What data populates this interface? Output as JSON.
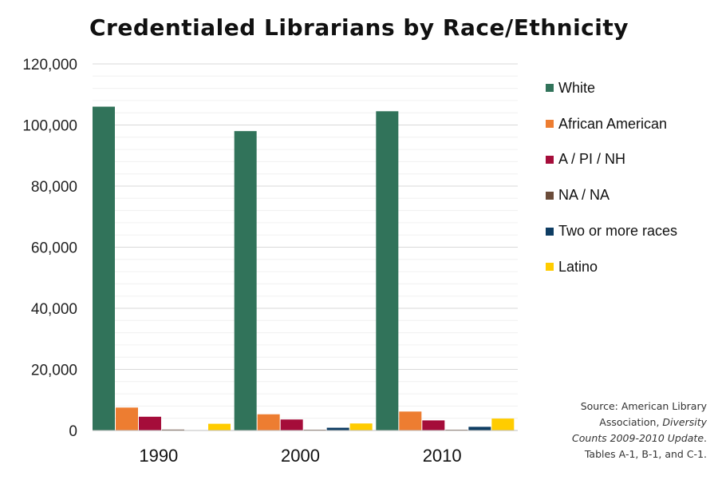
{
  "chart_data": {
    "type": "bar",
    "title": "Credentialed Librarians by Race/Ethnicity",
    "categories": [
      "1990",
      "2000",
      "2010"
    ],
    "series": [
      {
        "name": "White",
        "color": "#31735A",
        "values": [
          106000,
          98000,
          104500
        ]
      },
      {
        "name": "African American",
        "color": "#ED7D31",
        "values": [
          7500,
          5300,
          6200
        ]
      },
      {
        "name": "A / PI / NH",
        "color": "#A50D3A",
        "values": [
          4500,
          3600,
          3300
        ]
      },
      {
        "name": "NA / NA",
        "color": "#6B4C3A",
        "values": [
          300,
          250,
          250
        ]
      },
      {
        "name": "Two or more races",
        "color": "#0E3D63",
        "values": [
          0,
          900,
          1200
        ]
      },
      {
        "name": "Latino",
        "color": "#FFCC00",
        "values": [
          2200,
          2300,
          3900
        ]
      }
    ],
    "ylim": [
      0,
      120000
    ],
    "yticks": [
      "0",
      "20,000",
      "40,000",
      "60,000",
      "80,000",
      "100,000",
      "120,000"
    ],
    "ytick_values": [
      0,
      20000,
      40000,
      60000,
      80000,
      100000,
      120000
    ],
    "minor_grid_step": 4000,
    "legend_position": "right",
    "grid": true
  },
  "source": {
    "line1": "Source: American Library",
    "line2a": "Association, ",
    "line2b": "Diversity",
    "line3a": "Counts 2009-2010 Update",
    "line3b": ".",
    "line4": "Tables A-1, B-1, and C-1."
  }
}
